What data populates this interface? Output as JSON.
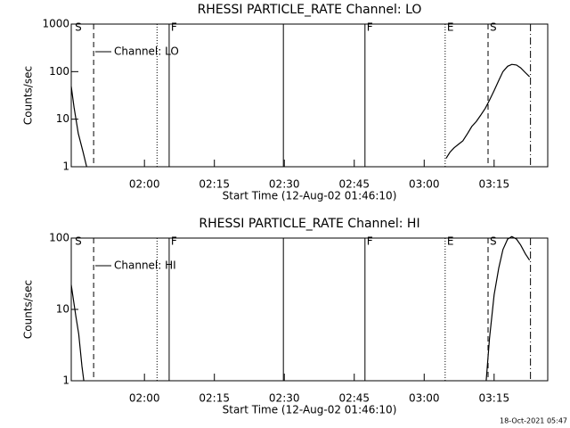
{
  "chart_data": [
    {
      "type": "line",
      "title": "RHESSI PARTICLE_RATE Channel: LO",
      "xlabel": "Start Time (12-Aug-02 01:46:10)",
      "ylabel": "Counts/sec",
      "log_y": true,
      "legend": "upper left",
      "xlim": [
        104.3,
        206.5
      ],
      "ylim": [
        1,
        1000
      ],
      "xticks": [
        {
          "value": 120,
          "label": "02:00"
        },
        {
          "value": 135,
          "label": "02:15"
        },
        {
          "value": 150,
          "label": "02:30"
        },
        {
          "value": 165,
          "label": "02:45"
        },
        {
          "value": 180,
          "label": "03:00"
        },
        {
          "value": 195,
          "label": "03:15"
        }
      ],
      "yticks": [
        1,
        10,
        100,
        1000
      ],
      "markers": [
        {
          "x": 109.1,
          "style": "dashed"
        },
        {
          "x": 122.7,
          "style": "dotted"
        },
        {
          "x": 125.3,
          "style": "solid"
        },
        {
          "x": 149.8,
          "style": "solid"
        },
        {
          "x": 167.3,
          "style": "solid"
        },
        {
          "x": 184.5,
          "style": "dotted"
        },
        {
          "x": 193.7,
          "style": "dashed"
        },
        {
          "x": 202.8,
          "style": "dashdot"
        }
      ],
      "flags": [
        {
          "x": 104.7,
          "label": "S"
        },
        {
          "x": 125.3,
          "label": "F"
        },
        {
          "x": 167.3,
          "label": "F"
        },
        {
          "x": 184.5,
          "label": "E"
        },
        {
          "x": 193.7,
          "label": "S"
        }
      ],
      "x": [
        104.3,
        104.9,
        105.8,
        106.8,
        107.6,
        null,
        184.7,
        185.5,
        186.4,
        187.4,
        188.3,
        189.3,
        190.2,
        191.2,
        192.1,
        193.1,
        194.0,
        195.0,
        196.0,
        196.9,
        197.9,
        198.8,
        199.8,
        200.7,
        201.7,
        202.6
      ],
      "series": [
        {
          "name": "Channel: LO",
          "color": "#000000",
          "values": [
            49,
            18,
            5,
            2.1,
            1,
            null,
            1.5,
            2,
            2.5,
            3,
            3.5,
            5,
            7,
            9,
            12,
            17,
            25,
            40,
            65,
            100,
            130,
            142,
            138,
            120,
            95,
            78
          ]
        }
      ]
    },
    {
      "type": "line",
      "title": "RHESSI PARTICLE_RATE Channel: HI",
      "xlabel": "Start Time (12-Aug-02 01:46:10)",
      "ylabel": "Counts/sec",
      "log_y": true,
      "legend": "upper left",
      "xlim": [
        104.3,
        206.5
      ],
      "ylim": [
        1,
        100
      ],
      "xticks": [
        {
          "value": 120,
          "label": "02:00"
        },
        {
          "value": 135,
          "label": "02:15"
        },
        {
          "value": 150,
          "label": "02:30"
        },
        {
          "value": 165,
          "label": "02:45"
        },
        {
          "value": 180,
          "label": "03:00"
        },
        {
          "value": 195,
          "label": "03:15"
        }
      ],
      "yticks": [
        1,
        10,
        100
      ],
      "markers": [
        {
          "x": 109.1,
          "style": "dashed"
        },
        {
          "x": 122.7,
          "style": "dotted"
        },
        {
          "x": 125.3,
          "style": "solid"
        },
        {
          "x": 149.8,
          "style": "solid"
        },
        {
          "x": 167.3,
          "style": "solid"
        },
        {
          "x": 184.5,
          "style": "dotted"
        },
        {
          "x": 193.7,
          "style": "dashed"
        },
        {
          "x": 202.8,
          "style": "dashdot"
        }
      ],
      "flags": [
        {
          "x": 104.7,
          "label": "S"
        },
        {
          "x": 125.3,
          "label": "F"
        },
        {
          "x": 167.3,
          "label": "F"
        },
        {
          "x": 184.5,
          "label": "E"
        },
        {
          "x": 193.7,
          "label": "S"
        }
      ],
      "x": [
        104.3,
        105.3,
        105.9,
        106.6,
        107.0,
        null,
        193.3,
        194.0,
        195.0,
        196.0,
        196.9,
        197.9,
        198.8,
        199.8,
        200.7,
        201.7,
        202.6
      ],
      "series": [
        {
          "name": "Channel: HI",
          "color": "#000000",
          "values": [
            22,
            8,
            4.5,
            1.6,
            1,
            null,
            1,
            3.9,
            16,
            38,
            69,
            97,
            105,
            97,
            80,
            60,
            49
          ]
        }
      ]
    }
  ],
  "footer": "18-Oct-2021 05:47"
}
